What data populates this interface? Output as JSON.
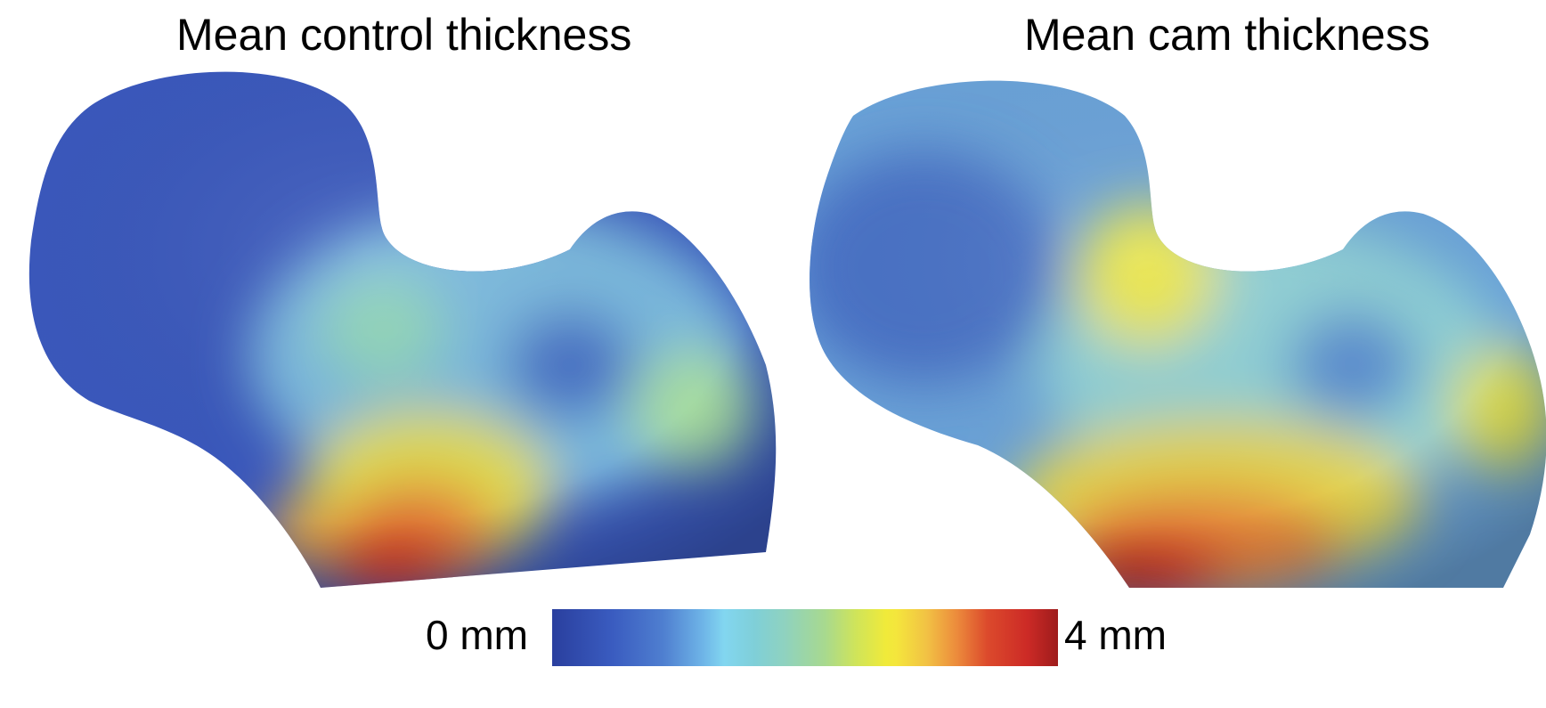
{
  "titles": {
    "left": "Mean control thickness",
    "right": "Mean cam thickness"
  },
  "colorbar": {
    "min_label": "0 mm",
    "max_label": "4 mm",
    "colors": [
      "#2a3f9e",
      "#3a5cc0",
      "#82d6f0",
      "#a8d98e",
      "#f0ea3a",
      "#ec8b3c",
      "#cc2a26",
      "#9e1c1c"
    ]
  },
  "figures": [
    {
      "name": "control-femur",
      "dominant_colors": [
        "#3453b8",
        "#6fa8d6",
        "#8fd0c8",
        "#d6412d"
      ]
    },
    {
      "name": "cam-femur",
      "dominant_colors": [
        "#5c8fd0",
        "#8fd0d8",
        "#e6e24a",
        "#d6412d"
      ]
    }
  ]
}
